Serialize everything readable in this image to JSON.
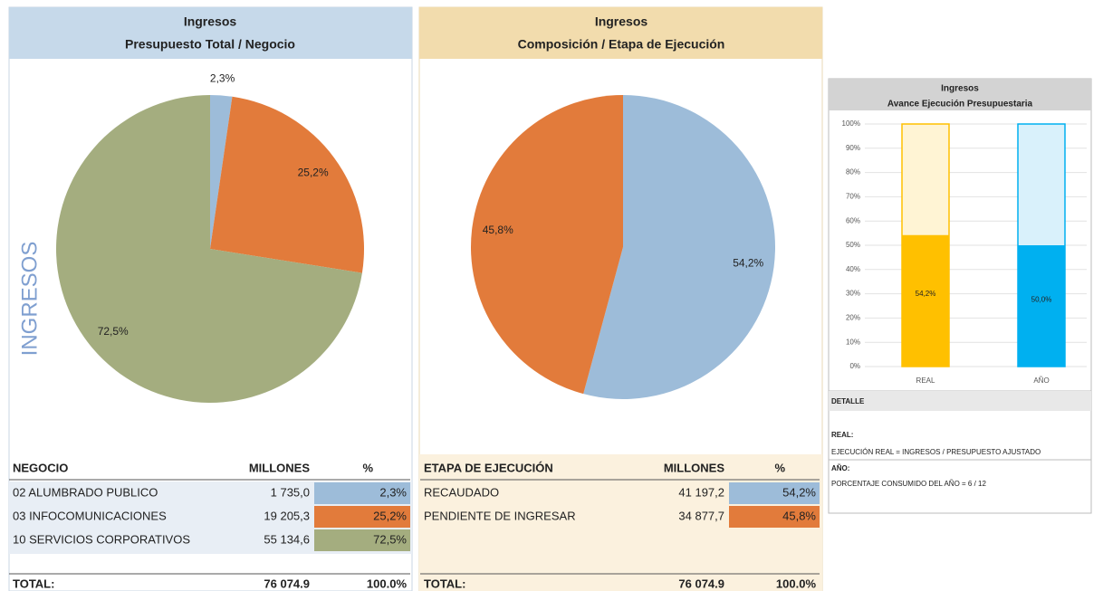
{
  "chart_data": [
    {
      "type": "pie",
      "title": "Ingresos",
      "subtitle": "Presupuesto Total / Negocio",
      "values": [
        2.3,
        25.2,
        72.5
      ],
      "value_labels": [
        "2,3%",
        "25,2%",
        "72,5%"
      ],
      "colors": [
        "#9dbcd9",
        "#e27b3b",
        "#a4ad7f"
      ]
    },
    {
      "type": "pie",
      "title": "Ingresos",
      "subtitle": "Composición / Etapa de Ejecución",
      "values": [
        54.2,
        45.8
      ],
      "value_labels": [
        "54,2%",
        "45,8%"
      ],
      "colors": [
        "#9dbcd9",
        "#e27b3b"
      ]
    },
    {
      "type": "bar",
      "title": "Ingresos",
      "subtitle": "Avance Ejecución Presupuestaria",
      "categories": [
        "REAL",
        "AÑO"
      ],
      "values": [
        54.2,
        50.0
      ],
      "value_labels": [
        "54,2%",
        "50,0%"
      ],
      "colors": [
        "#ffc000",
        "#00b0f0"
      ],
      "track_colors": [
        "#fff4d4",
        "#d9f1fb"
      ],
      "ylim": [
        0,
        100
      ],
      "yticks": [
        {
          "value": 0,
          "label": "0%"
        },
        {
          "value": 10,
          "label": "10%"
        },
        {
          "value": 20,
          "label": "20%"
        },
        {
          "value": 30,
          "label": "30%"
        },
        {
          "value": 40,
          "label": "40%"
        },
        {
          "value": 50,
          "label": "50%"
        },
        {
          "value": 60,
          "label": "60%"
        },
        {
          "value": 70,
          "label": "70%"
        },
        {
          "value": 80,
          "label": "80%"
        },
        {
          "value": 90,
          "label": "90%"
        },
        {
          "value": 100,
          "label": "100%"
        }
      ],
      "grid": true
    }
  ],
  "side_label": "INGRESOS",
  "tables": [
    {
      "header": [
        "NEGOCIO",
        "MILLONES",
        "%"
      ],
      "rows": [
        [
          "02 ALUMBRADO PUBLICO",
          "1 735,0",
          "2,3%"
        ],
        [
          "03 INFOCOMUNICACIONES",
          "19 205,3",
          "25,2%"
        ],
        [
          "10 SERVICIOS CORPORATIVOS",
          "55 134,6",
          "72,5%"
        ]
      ],
      "total": [
        "TOTAL:",
        "76 074.9",
        "100.0%"
      ]
    },
    {
      "header": [
        "ETAPA DE EJECUCIÓN",
        "MILLONES",
        "%"
      ],
      "rows": [
        [
          "RECAUDADO",
          "41 197,2",
          "54,2%"
        ],
        [
          "PENDIENTE DE INGRESAR",
          "34 877,7",
          "45,8%"
        ]
      ],
      "total": [
        "TOTAL:",
        "76 074.9",
        "100.0%"
      ]
    }
  ],
  "detail": {
    "title": "DETALLE",
    "real_label": "REAL:",
    "real_text": "EJECUCIÓN REAL = INGRESOS / PRESUPUESTO AJUSTADO",
    "year_label": "AÑO:",
    "year_text": "PORCENTAJE CONSUMIDO DEL AÑO = 6 / 12"
  }
}
